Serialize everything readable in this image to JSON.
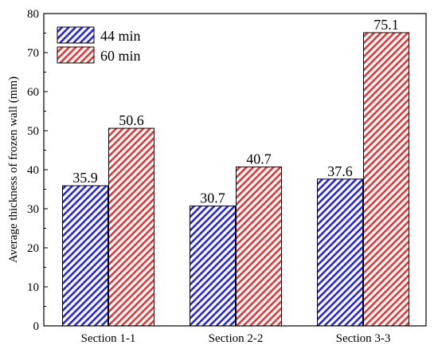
{
  "chart_data": {
    "type": "bar",
    "categories": [
      "Section 1-1",
      "Section 2-2",
      "Section 3-3"
    ],
    "series": [
      {
        "name": "44 min",
        "values": [
          35.9,
          30.7,
          37.6
        ],
        "color": "#2323e0"
      },
      {
        "name": "60 min",
        "values": [
          50.6,
          40.7,
          75.1
        ],
        "color": "#e63232"
      }
    ],
    "data_labels": [
      [
        "35.9",
        "30.7",
        "37.6"
      ],
      [
        "50.6",
        "40.7",
        "75.1"
      ]
    ],
    "title": "",
    "xlabel": "",
    "ylabel": "Average thickness of frozen wall (mm)",
    "ylim": [
      0,
      80
    ],
    "yticks": [
      0,
      10,
      20,
      30,
      40,
      50,
      60,
      70,
      80
    ],
    "grid": false,
    "legend_position": "top-left",
    "bar_fill": "diagonal-hatch"
  }
}
